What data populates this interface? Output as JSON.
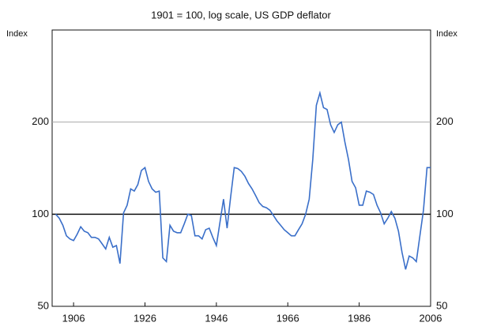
{
  "chart_data": {
    "type": "line",
    "title": "1901 = 100, log scale, US GDP deflator",
    "y_label": "Index",
    "y2_label": "Index",
    "log_scale": true,
    "xlim": [
      1900,
      2006
    ],
    "ylim": [
      50,
      400
    ],
    "xticks": [
      1906,
      1926,
      1946,
      1966,
      1986,
      2006
    ],
    "yticks": [
      50,
      100,
      200
    ],
    "grid": true,
    "baseline": 100,
    "series": [
      {
        "name": "US GDP deflator",
        "color": "#3a6fc9",
        "x": [
          1901,
          1902,
          1903,
          1904,
          1905,
          1906,
          1907,
          1908,
          1909,
          1910,
          1911,
          1912,
          1913,
          1914,
          1915,
          1916,
          1917,
          1918,
          1919,
          1920,
          1921,
          1922,
          1923,
          1924,
          1925,
          1926,
          1927,
          1928,
          1929,
          1930,
          1931,
          1932,
          1933,
          1934,
          1935,
          1936,
          1937,
          1938,
          1939,
          1940,
          1941,
          1942,
          1943,
          1944,
          1945,
          1946,
          1947,
          1948,
          1949,
          1950,
          1951,
          1952,
          1953,
          1954,
          1955,
          1956,
          1957,
          1958,
          1959,
          1960,
          1961,
          1962,
          1963,
          1964,
          1965,
          1966,
          1967,
          1968,
          1969,
          1970,
          1971,
          1972,
          1973,
          1974,
          1975,
          1976,
          1977,
          1978,
          1979,
          1980,
          1981,
          1982,
          1983,
          1984,
          1985,
          1986,
          1987,
          1988,
          1989,
          1990,
          1991,
          1992,
          1993,
          1994,
          1995,
          1996,
          1997,
          1998,
          1999,
          2000,
          2001,
          2002,
          2003,
          2004,
          2005,
          2006
        ],
        "values": [
          100,
          97,
          92,
          85,
          83,
          82,
          86,
          91,
          88,
          87,
          84,
          84,
          83,
          80,
          77,
          84,
          78,
          79,
          69,
          101,
          107,
          121,
          119,
          125,
          139,
          142,
          128,
          121,
          118,
          119,
          72,
          70,
          92,
          88,
          87,
          87,
          93,
          100,
          99,
          85,
          85,
          83,
          89,
          90,
          84,
          79,
          94,
          112,
          90,
          114,
          142,
          141,
          138,
          133,
          126,
          121,
          115,
          109,
          106,
          105,
          103,
          99,
          95,
          92,
          89,
          87,
          85,
          85,
          89,
          93,
          100,
          112,
          151,
          227,
          249,
          223,
          220,
          196,
          185,
          196,
          200,
          172,
          151,
          128,
          122,
          107,
          107,
          119,
          118,
          116,
          107,
          101,
          93,
          97,
          102,
          97,
          88,
          75,
          66,
          73,
          72,
          70,
          85,
          103,
          142,
          142
        ]
      }
    ]
  }
}
